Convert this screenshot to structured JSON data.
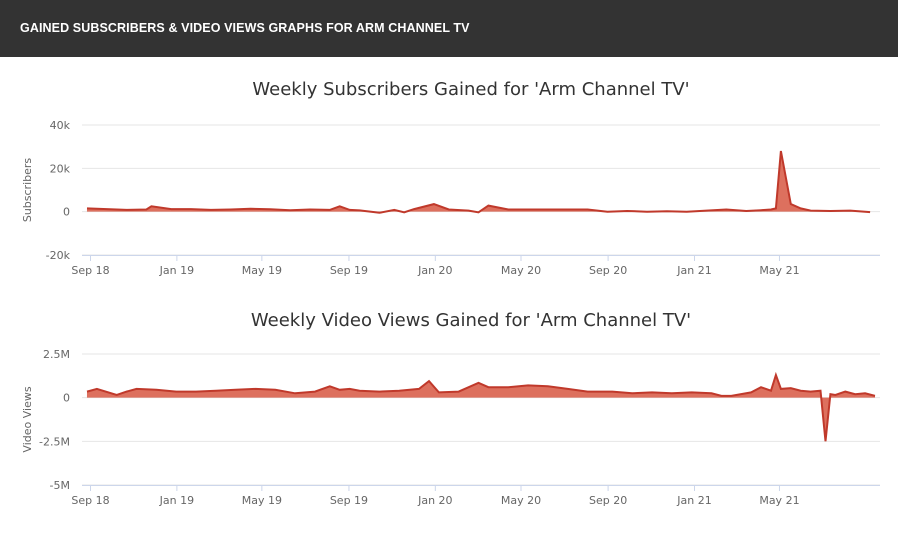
{
  "header": {
    "title": "GAINED SUBSCRIBERS & VIDEO VIEWS GRAPHS FOR ARM CHANNEL TV"
  },
  "colors": {
    "series_fill": "#d9604c",
    "series_line": "#c0392b",
    "header_bg": "#333333",
    "grid": "#e6e6e6"
  },
  "chart_data": [
    {
      "type": "area",
      "title": "Weekly Subscribers Gained for 'Arm Channel TV'",
      "xlabel": "",
      "ylabel": "Subscribers",
      "ylim": [
        -20000,
        40000
      ],
      "yticks": [
        40000,
        20000,
        0,
        -20000
      ],
      "ytick_labels": [
        "40k",
        "20k",
        "0",
        "-20k"
      ],
      "xticks": [
        "Sep 18",
        "Jan 19",
        "May 19",
        "Sep 19",
        "Jan 20",
        "May 20",
        "Sep 20",
        "Jan 21",
        "May 21"
      ],
      "xtick_dates": [
        "2018-09-01",
        "2019-01-01",
        "2019-05-01",
        "2019-09-01",
        "2020-01-01",
        "2020-05-01",
        "2020-09-01",
        "2021-01-01",
        "2021-05-01"
      ],
      "xlim": [
        "2018-08-20",
        "2021-09-20"
      ],
      "grid": true,
      "legend": "none",
      "series": [
        {
          "x": [
            "2018-08-27",
            "2018-09-24",
            "2018-10-22",
            "2018-11-19",
            "2018-11-26",
            "2018-12-24",
            "2019-01-21",
            "2019-02-18",
            "2019-03-18",
            "2019-04-15",
            "2019-05-13",
            "2019-06-10",
            "2019-07-08",
            "2019-08-05",
            "2019-08-19",
            "2019-09-02",
            "2019-09-16",
            "2019-10-14",
            "2019-11-04",
            "2019-11-18",
            "2019-12-02",
            "2019-12-30",
            "2020-01-20",
            "2020-02-17",
            "2020-03-02",
            "2020-03-16",
            "2020-04-13",
            "2020-05-11",
            "2020-06-08",
            "2020-07-06",
            "2020-08-03",
            "2020-08-31",
            "2020-09-28",
            "2020-10-26",
            "2020-11-23",
            "2020-12-21",
            "2021-01-18",
            "2021-02-15",
            "2021-03-15",
            "2021-04-05",
            "2021-04-19",
            "2021-04-26",
            "2021-05-03",
            "2021-05-17",
            "2021-05-31",
            "2021-06-14",
            "2021-07-12",
            "2021-08-09",
            "2021-09-06"
          ],
          "y": [
            1500,
            1200,
            800,
            1000,
            2500,
            1200,
            1200,
            800,
            1000,
            1300,
            1100,
            700,
            1000,
            800,
            2500,
            800,
            600,
            -500,
            800,
            -300,
            1200,
            3500,
            1000,
            500,
            -300,
            2800,
            1000,
            1000,
            1000,
            1000,
            1000,
            0,
            300,
            0,
            200,
            0,
            500,
            1000,
            300,
            700,
            1000,
            1500,
            28000,
            3500,
            1500,
            500,
            300,
            500,
            -200
          ]
        }
      ]
    },
    {
      "type": "area",
      "title": "Weekly Video Views Gained for 'Arm Channel TV'",
      "xlabel": "",
      "ylabel": "Video Views",
      "ylim": [
        -5000000,
        2500000
      ],
      "yticks": [
        2500000,
        0,
        -2500000,
        -5000000
      ],
      "ytick_labels": [
        "2.5M",
        "0",
        "-2.5M",
        "-5M"
      ],
      "xticks": [
        "Sep 18",
        "Jan 19",
        "May 19",
        "Sep 19",
        "Jan 20",
        "May 20",
        "Sep 20",
        "Jan 21",
        "May 21"
      ],
      "xtick_dates": [
        "2018-09-01",
        "2019-01-01",
        "2019-05-01",
        "2019-09-01",
        "2020-01-01",
        "2020-05-01",
        "2020-09-01",
        "2021-01-01",
        "2021-05-01"
      ],
      "xlim": [
        "2018-08-20",
        "2021-09-20"
      ],
      "grid": true,
      "legend": "none",
      "series": [
        {
          "x": [
            "2018-08-27",
            "2018-09-10",
            "2018-10-08",
            "2018-10-22",
            "2018-11-05",
            "2018-12-03",
            "2018-12-31",
            "2019-01-28",
            "2019-02-25",
            "2019-03-25",
            "2019-04-22",
            "2019-05-20",
            "2019-06-17",
            "2019-07-15",
            "2019-08-05",
            "2019-08-19",
            "2019-09-02",
            "2019-09-16",
            "2019-10-14",
            "2019-11-11",
            "2019-12-09",
            "2019-12-23",
            "2020-01-06",
            "2020-02-03",
            "2020-03-02",
            "2020-03-16",
            "2020-04-13",
            "2020-05-11",
            "2020-06-08",
            "2020-07-06",
            "2020-08-03",
            "2020-09-07",
            "2020-10-05",
            "2020-11-02",
            "2020-11-30",
            "2020-12-28",
            "2021-01-25",
            "2021-02-08",
            "2021-02-22",
            "2021-03-22",
            "2021-04-05",
            "2021-04-19",
            "2021-04-26",
            "2021-05-03",
            "2021-05-17",
            "2021-05-31",
            "2021-06-14",
            "2021-06-28",
            "2021-07-05",
            "2021-07-12",
            "2021-07-19",
            "2021-08-02",
            "2021-08-16",
            "2021-08-30",
            "2021-09-13"
          ],
          "y": [
            350000,
            500000,
            150000,
            350000,
            500000,
            450000,
            350000,
            350000,
            400000,
            450000,
            500000,
            450000,
            250000,
            350000,
            650000,
            450000,
            500000,
            400000,
            350000,
            400000,
            500000,
            950000,
            300000,
            350000,
            850000,
            600000,
            600000,
            700000,
            650000,
            500000,
            350000,
            350000,
            250000,
            300000,
            250000,
            300000,
            250000,
            100000,
            100000,
            300000,
            600000,
            400000,
            1300000,
            500000,
            550000,
            400000,
            350000,
            400000,
            -2500000,
            200000,
            150000,
            350000,
            200000,
            250000,
            100000
          ]
        }
      ]
    }
  ]
}
